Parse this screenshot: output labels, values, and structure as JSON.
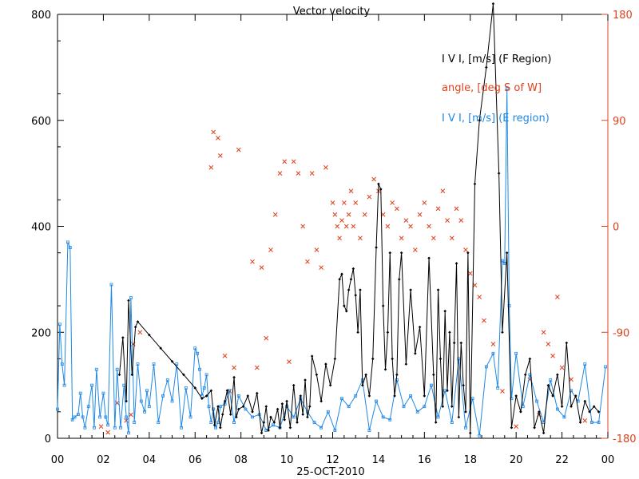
{
  "chart_data": {
    "type": "line",
    "title": "Vector velocity",
    "xlabel": "25-OCT-2010",
    "x_tick_labels": [
      "00",
      "02",
      "04",
      "06",
      "08",
      "10",
      "12",
      "14",
      "16",
      "18",
      "20",
      "22",
      "00"
    ],
    "xlim_hours": [
      0,
      24
    ],
    "ylim_left": [
      0,
      800
    ],
    "y_tick_labels_left": [
      "0",
      "200",
      "400",
      "600",
      "800"
    ],
    "ylim_right": [
      -180,
      180
    ],
    "y_tick_labels_right": [
      "-180",
      "-90",
      "0",
      "90",
      "180"
    ],
    "legend_placement": "top-right",
    "colors": {
      "black": "#000000",
      "red": "#e0401c",
      "blue": "#1e88e5"
    },
    "series": [
      {
        "name": "I V I, [m/s] (F Region)",
        "axis": "left",
        "color": "#000000",
        "style": "line-diamond",
        "x": [
          2.7,
          2.85,
          3.0,
          3.1,
          3.25,
          3.4,
          3.5,
          4.0,
          4.5,
          5.0,
          5.5,
          6.0,
          6.3,
          6.5,
          6.7,
          6.85,
          7.0,
          7.1,
          7.2,
          7.3,
          7.4,
          7.55,
          7.7,
          7.8,
          7.9,
          8.1,
          8.3,
          8.5,
          8.7,
          8.9,
          9.0,
          9.1,
          9.2,
          9.3,
          9.45,
          9.6,
          9.7,
          9.8,
          9.9,
          10.0,
          10.15,
          10.3,
          10.45,
          10.6,
          10.7,
          10.8,
          10.9,
          11.0,
          11.1,
          11.3,
          11.5,
          11.7,
          11.9,
          12.1,
          12.3,
          12.4,
          12.5,
          12.6,
          12.7,
          12.8,
          12.9,
          13.0,
          13.1,
          13.2,
          13.3,
          13.45,
          13.6,
          13.75,
          13.9,
          14.0,
          14.1,
          14.2,
          14.3,
          14.4,
          14.5,
          14.6,
          14.7,
          14.8,
          14.9,
          15.0,
          15.2,
          15.4,
          15.6,
          15.8,
          16.0,
          16.2,
          16.4,
          16.5,
          16.6,
          16.7,
          16.8,
          16.9,
          17.0,
          17.1,
          17.2,
          17.3,
          17.4,
          17.5,
          17.6,
          17.7,
          17.8,
          17.9,
          18.0,
          18.2,
          18.4,
          18.7,
          19.0,
          19.25,
          19.4,
          19.6,
          19.8,
          20.0,
          20.2,
          20.4,
          20.6,
          20.8,
          21.0,
          21.2,
          21.4,
          21.6,
          21.8,
          22.0,
          22.2,
          22.4,
          22.6,
          22.8,
          23.0,
          23.2,
          23.4,
          23.6
        ],
        "y": [
          120,
          190,
          70,
          260,
          120,
          210,
          220,
          195,
          170,
          145,
          120,
          95,
          75,
          80,
          90,
          25,
          60,
          20,
          45,
          70,
          90,
          45,
          115,
          40,
          55,
          60,
          80,
          50,
          85,
          10,
          30,
          60,
          15,
          40,
          30,
          55,
          20,
          65,
          35,
          70,
          20,
          100,
          30,
          80,
          45,
          110,
          40,
          60,
          155,
          120,
          70,
          140,
          100,
          150,
          300,
          310,
          250,
          240,
          280,
          300,
          320,
          270,
          200,
          280,
          100,
          120,
          80,
          150,
          360,
          480,
          470,
          250,
          130,
          200,
          350,
          150,
          80,
          120,
          300,
          350,
          140,
          280,
          160,
          210,
          80,
          340,
          120,
          30,
          280,
          150,
          60,
          240,
          90,
          200,
          60,
          180,
          330,
          40,
          180,
          100,
          50,
          350,
          10,
          480,
          600,
          700,
          820,
          500,
          200,
          350,
          20,
          80,
          50,
          120,
          150,
          20,
          50,
          10,
          100,
          80,
          120,
          60,
          180,
          60,
          80,
          30,
          70,
          50,
          60,
          50
        ],
        "note": "approximate, read from plot"
      },
      {
        "name": "angle, [deg S of W]",
        "axis": "right",
        "color": "#e0401c",
        "style": "x-markers",
        "x": [
          1.9,
          2.2,
          2.6,
          3.0,
          3.2,
          3.3,
          3.6,
          6.7,
          6.8,
          7.0,
          7.1,
          7.3,
          7.5,
          7.7,
          7.9,
          8.5,
          8.7,
          8.9,
          9.1,
          9.3,
          9.5,
          9.7,
          9.9,
          10.1,
          10.3,
          10.5,
          10.7,
          10.9,
          11.1,
          11.3,
          11.5,
          11.7,
          12.0,
          12.1,
          12.2,
          12.3,
          12.4,
          12.5,
          12.6,
          12.7,
          12.8,
          12.9,
          13.0,
          13.2,
          13.4,
          13.6,
          13.8,
          14.0,
          14.2,
          14.4,
          14.6,
          14.8,
          15.0,
          15.2,
          15.4,
          15.6,
          15.8,
          16.0,
          16.2,
          16.4,
          16.6,
          16.8,
          17.0,
          17.2,
          17.4,
          17.6,
          17.8,
          18.0,
          18.2,
          18.4,
          18.6,
          19.0,
          19.4,
          20.0,
          20.6,
          21.0,
          21.2,
          21.4,
          21.6,
          21.8,
          22.0,
          22.4,
          23.0
        ],
        "y": [
          -170,
          -175,
          -150,
          -165,
          -160,
          -100,
          -90,
          50,
          80,
          75,
          60,
          -110,
          -140,
          -120,
          65,
          -30,
          -120,
          -35,
          -95,
          -20,
          10,
          45,
          55,
          -115,
          55,
          45,
          0,
          -30,
          45,
          -20,
          -35,
          50,
          20,
          10,
          0,
          -10,
          5,
          20,
          0,
          10,
          30,
          0,
          20,
          -10,
          10,
          25,
          40,
          30,
          10,
          0,
          20,
          15,
          -10,
          5,
          0,
          -20,
          10,
          20,
          0,
          -10,
          15,
          30,
          5,
          -10,
          15,
          5,
          -20,
          -40,
          -50,
          -60,
          -80,
          -100,
          -140,
          -170,
          -130,
          -160,
          -90,
          -100,
          -110,
          -60,
          -120,
          -130,
          -165
        ],
        "note": "approximate, read from plot"
      },
      {
        "name": "I V I, [m/s] (E region)",
        "axis": "left",
        "color": "#1e88e5",
        "style": "line-square-and-x",
        "x": [
          0.0,
          0.1,
          0.2,
          0.3,
          0.45,
          0.55,
          0.65,
          0.75,
          0.9,
          1.0,
          1.1,
          1.2,
          1.35,
          1.5,
          1.6,
          1.7,
          1.85,
          2.0,
          2.1,
          2.2,
          2.35,
          2.5,
          2.6,
          2.75,
          2.9,
          3.0,
          3.1,
          3.2,
          3.35,
          3.5,
          3.65,
          3.8,
          3.9,
          4.0,
          4.2,
          4.4,
          4.6,
          4.8,
          5.0,
          5.2,
          5.4,
          5.6,
          5.8,
          6.0,
          6.1,
          6.2,
          6.3,
          6.4,
          6.5,
          6.6,
          6.7,
          6.8,
          6.9,
          7.0,
          7.1,
          7.3,
          7.5,
          7.7,
          7.9,
          8.2,
          8.5,
          8.8,
          9.1,
          9.4,
          9.7,
          10.0,
          10.3,
          10.6,
          10.9,
          11.2,
          11.5,
          11.8,
          12.1,
          12.4,
          12.7,
          13.0,
          13.3,
          13.6,
          13.9,
          14.2,
          14.5,
          14.8,
          15.1,
          15.4,
          15.7,
          16.0,
          16.3,
          16.6,
          16.9,
          17.2,
          17.5,
          17.8,
          18.1,
          18.4,
          18.7,
          19.0,
          19.2,
          19.4,
          19.5,
          19.6,
          19.7,
          19.8,
          20.0,
          20.3,
          20.6,
          20.9,
          21.2,
          21.5,
          21.8,
          22.1,
          22.4,
          22.7,
          23.0,
          23.3,
          23.6,
          23.9
        ],
        "y": [
          55,
          215,
          140,
          100,
          370,
          360,
          35,
          40,
          45,
          85,
          40,
          20,
          60,
          100,
          20,
          130,
          40,
          85,
          40,
          25,
          290,
          20,
          130,
          20,
          100,
          40,
          10,
          265,
          30,
          140,
          70,
          50,
          90,
          60,
          140,
          30,
          80,
          110,
          70,
          140,
          20,
          95,
          40,
          170,
          160,
          130,
          80,
          95,
          120,
          60,
          30,
          55,
          20,
          30,
          60,
          65,
          90,
          30,
          80,
          55,
          40,
          45,
          15,
          25,
          20,
          60,
          40,
          75,
          50,
          30,
          20,
          50,
          15,
          75,
          60,
          80,
          110,
          15,
          70,
          40,
          35,
          110,
          60,
          80,
          50,
          60,
          100,
          40,
          90,
          30,
          150,
          20,
          75,
          5,
          135,
          160,
          95,
          335,
          330,
          660,
          250,
          75,
          160,
          60,
          120,
          70,
          30,
          110,
          55,
          40,
          90,
          70,
          140,
          30,
          30,
          135
        ],
        "note": "approximate, read from plot"
      }
    ]
  }
}
